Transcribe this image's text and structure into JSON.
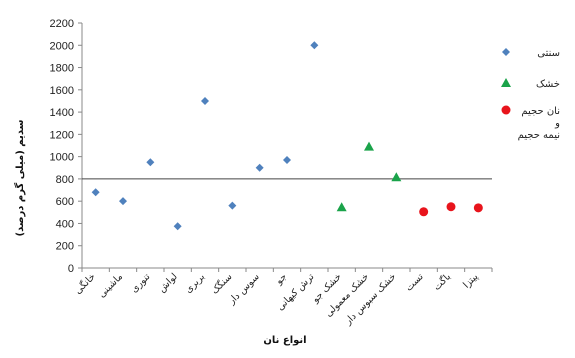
{
  "chart_data": {
    "type": "scatter",
    "title": "",
    "xlabel": "انواع نان",
    "ylabel": "سدیم (میلی گرم درصد)",
    "ylim": [
      0,
      2200
    ],
    "ytick_step": 200,
    "categories": [
      "خانگی",
      "ماشینی",
      "تنوری",
      "لواش",
      "بربری",
      "سنگک",
      "سوس دار",
      "جو",
      "ترش کیهانی",
      "خشک جو",
      "خشک معمولی",
      "خشک سبوس دار",
      "تست",
      "باگت",
      "پیتزا"
    ],
    "reference_line": 800,
    "series": [
      {
        "name": "سنتی",
        "marker": "diamond",
        "color": "#4f81bd",
        "x": [
          0,
          1,
          2,
          3,
          4,
          5,
          6,
          7,
          8
        ],
        "values": [
          680,
          600,
          950,
          375,
          1500,
          560,
          900,
          970,
          2000
        ]
      },
      {
        "name": "خشک",
        "marker": "triangle",
        "color": "#1aa34a",
        "x": [
          9,
          10,
          11
        ],
        "values": [
          545,
          1090,
          815
        ]
      },
      {
        "name": "نان حجیم و نیمه حجیم",
        "marker": "circle",
        "color": "#e8141c",
        "x": [
          12,
          13,
          14
        ],
        "values": [
          505,
          550,
          540
        ]
      }
    ],
    "grid": false,
    "legend_position": "right"
  },
  "legend": {
    "items": [
      {
        "lines": [
          "سنتی"
        ]
      },
      {
        "lines": [
          "خشک"
        ]
      },
      {
        "lines": [
          "نان حجیم",
          "و",
          "نیمه حجیم"
        ]
      }
    ]
  }
}
